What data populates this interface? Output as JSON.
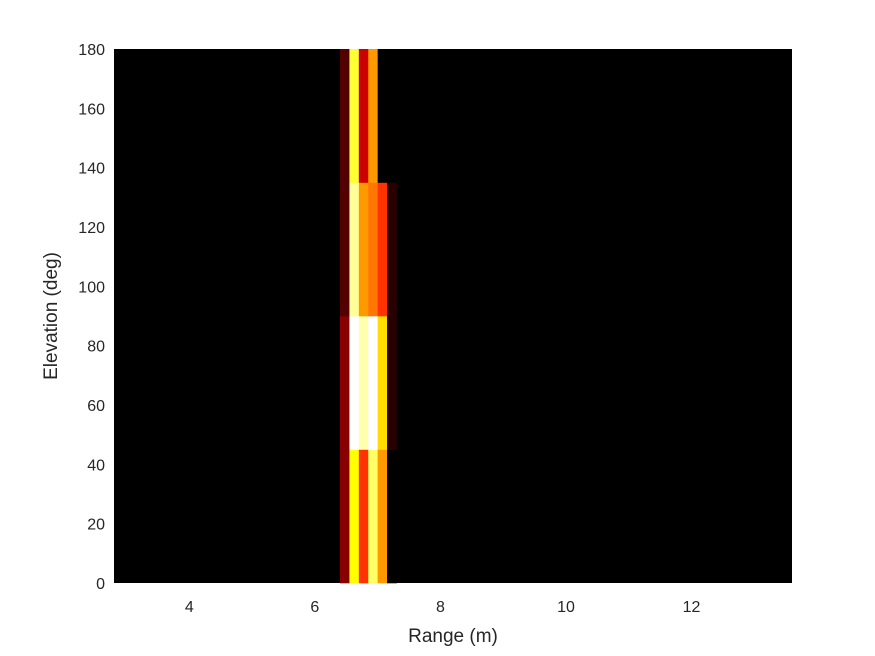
{
  "chart_data": {
    "type": "heatmap",
    "title": "",
    "xlabel": "Range (m)",
    "ylabel": "Elevation (deg)",
    "xlim": [
      2.8,
      13.6
    ],
    "ylim": [
      0,
      180
    ],
    "grid": false,
    "colormap": "hot",
    "background_color": "#000000",
    "x_ticks": [
      4,
      6,
      8,
      10,
      12
    ],
    "x_tick_labels": [
      "4",
      "6",
      "8",
      "10",
      "12"
    ],
    "y_ticks": [
      0,
      20,
      40,
      60,
      80,
      100,
      120,
      140,
      160,
      180
    ],
    "y_tick_labels": [
      "0",
      "20",
      "40",
      "60",
      "80",
      "100",
      "120",
      "140",
      "160",
      "180"
    ],
    "range_bin_edges": [
      6.4,
      6.55,
      6.7,
      6.85,
      7.0,
      7.15,
      7.3
    ],
    "elevation_bin_edges": [
      0,
      45,
      90,
      135,
      180
    ],
    "intensity_rows": [
      [
        0.2,
        0.75,
        0.45,
        0.85,
        0.6,
        0.0
      ],
      [
        0.2,
        1.0,
        0.92,
        1.0,
        0.7,
        0.06
      ],
      [
        0.12,
        0.9,
        0.6,
        0.55,
        0.45,
        0.06
      ],
      [
        0.12,
        0.8,
        0.3,
        0.6,
        0.0,
        0.0
      ]
    ]
  }
}
